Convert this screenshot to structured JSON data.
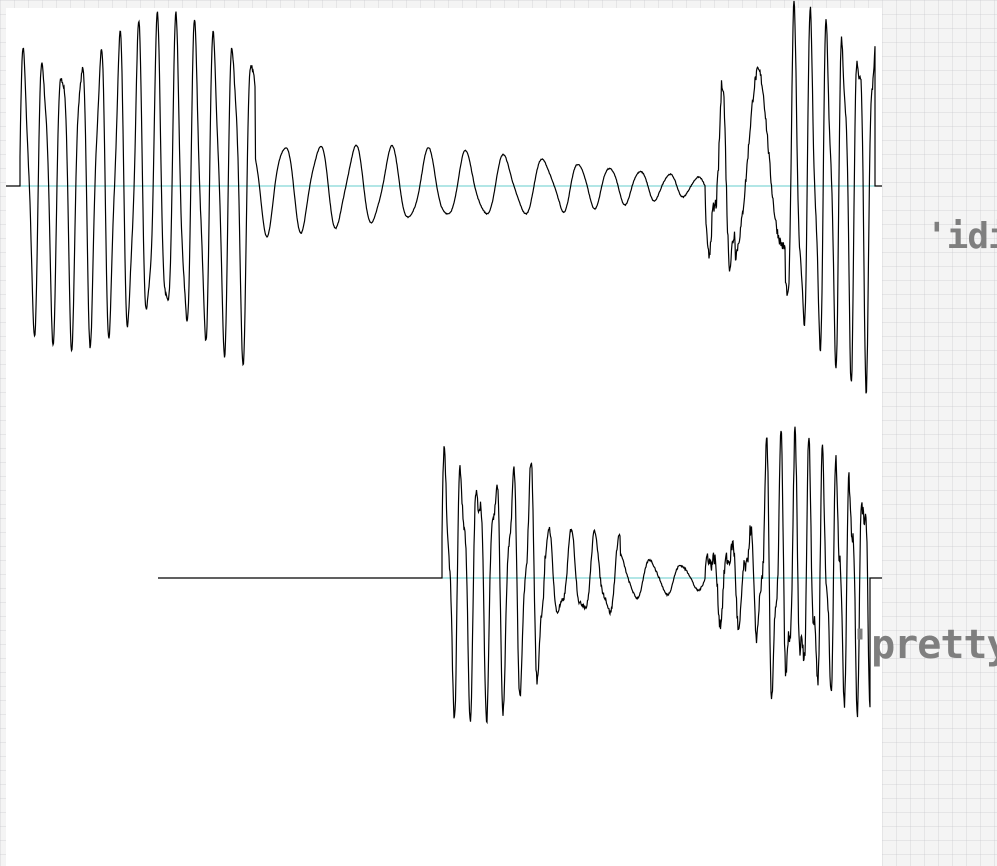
{
  "labels": {
    "word_1": "'idi'",
    "word_2": "'pretty'"
  },
  "colors": {
    "waveform": "#000000",
    "baseline": "#66cccc",
    "label": "#7f7f7f",
    "panel": "#ffffff"
  },
  "waveforms": [
    {
      "name": "idi",
      "onset_fraction": 0.0
    },
    {
      "name": "pretty",
      "onset_fraction": 0.33
    }
  ]
}
